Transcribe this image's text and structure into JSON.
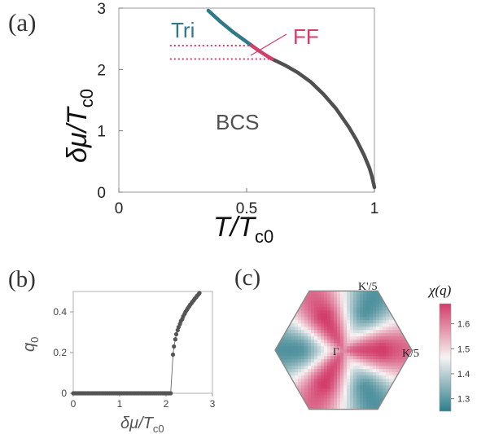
{
  "chart_data": [
    {
      "panel": "(a)",
      "type": "line",
      "xlabel_main": "T/T",
      "xlabel_sub": "c0",
      "ylabel_main": "δμ/T",
      "ylabel_sub": "c0",
      "xlim": [
        0,
        1
      ],
      "ylim": [
        0,
        3
      ],
      "xticks": [
        0,
        0.5,
        1
      ],
      "xtick_labels": [
        "0",
        "0.5",
        "1"
      ],
      "yticks": [
        0,
        1,
        2,
        3
      ],
      "ytick_labels": [
        "0",
        "1",
        "2",
        "3"
      ],
      "grid": false,
      "series": [
        {
          "name": "BCS",
          "color": "#505050",
          "x": [
            0.6,
            0.65,
            0.7,
            0.75,
            0.8,
            0.85,
            0.9,
            0.93,
            0.96,
            0.98,
            0.99,
            1.0
          ],
          "y": [
            2.17,
            2.07,
            1.95,
            1.8,
            1.6,
            1.36,
            1.06,
            0.85,
            0.6,
            0.4,
            0.26,
            0.08
          ]
        },
        {
          "name": "Tri",
          "color": "#2f7a8a",
          "x": [
            0.35,
            0.4,
            0.45,
            0.5,
            0.52
          ],
          "y": [
            2.96,
            2.77,
            2.6,
            2.45,
            2.39
          ]
        },
        {
          "name": "FF",
          "color": "#d23d6a",
          "x": [
            0.52,
            0.55,
            0.58,
            0.6
          ],
          "y": [
            2.39,
            2.3,
            2.22,
            2.17
          ]
        }
      ],
      "dotted_lines": [
        {
          "x": [
            0.2,
            0.52
          ],
          "y": 2.39,
          "color": "#d23d6a"
        },
        {
          "x": [
            0.2,
            0.6
          ],
          "y": 2.17,
          "color": "#d23d6a"
        }
      ],
      "labels": [
        "Tri",
        "FF",
        "BCS"
      ]
    },
    {
      "panel": "(b)",
      "type": "scatter",
      "xlabel_main": "δμ/T",
      "xlabel_sub": "c0",
      "ylabel_main": "q",
      "ylabel_sub": "0",
      "xlim": [
        0,
        3
      ],
      "ylim": [
        0,
        0.5
      ],
      "xticks": [
        0,
        1,
        2,
        3
      ],
      "xtick_labels": [
        "0",
        "1",
        "2",
        "3"
      ],
      "yticks": [
        0,
        0.2,
        0.4
      ],
      "ytick_labels": [
        "0",
        "0.2",
        "0.4"
      ],
      "grid": false,
      "color": "#555555",
      "zero_region": {
        "x_start": 0,
        "x_end": 2.1,
        "step": 0.03
      },
      "x": [
        2.15,
        2.17,
        2.2,
        2.22,
        2.25,
        2.27,
        2.3,
        2.32,
        2.35,
        2.37,
        2.4,
        2.42,
        2.45,
        2.47,
        2.5,
        2.52,
        2.55,
        2.57,
        2.6,
        2.62,
        2.65,
        2.67,
        2.7,
        2.72
      ],
      "y": [
        0.19,
        0.23,
        0.265,
        0.29,
        0.31,
        0.325,
        0.34,
        0.355,
        0.365,
        0.378,
        0.39,
        0.4,
        0.41,
        0.418,
        0.427,
        0.435,
        0.443,
        0.45,
        0.458,
        0.465,
        0.472,
        0.479,
        0.486,
        0.493
      ]
    },
    {
      "panel": "(c)",
      "type": "heatmap",
      "colorbar_label": "χ(q)",
      "colorbar_ticks": [
        1.3,
        1.4,
        1.5,
        1.6
      ],
      "colorbar_tick_labels": [
        "1.3",
        "1.4",
        "1.5",
        "1.6"
      ],
      "colorbar_range": [
        1.25,
        1.68
      ],
      "colormap": [
        "#2e7e8c",
        "#f7f3f3",
        "#d23d6a"
      ],
      "point_labels": [
        "Γ",
        "K'/5",
        "K/5"
      ]
    }
  ]
}
